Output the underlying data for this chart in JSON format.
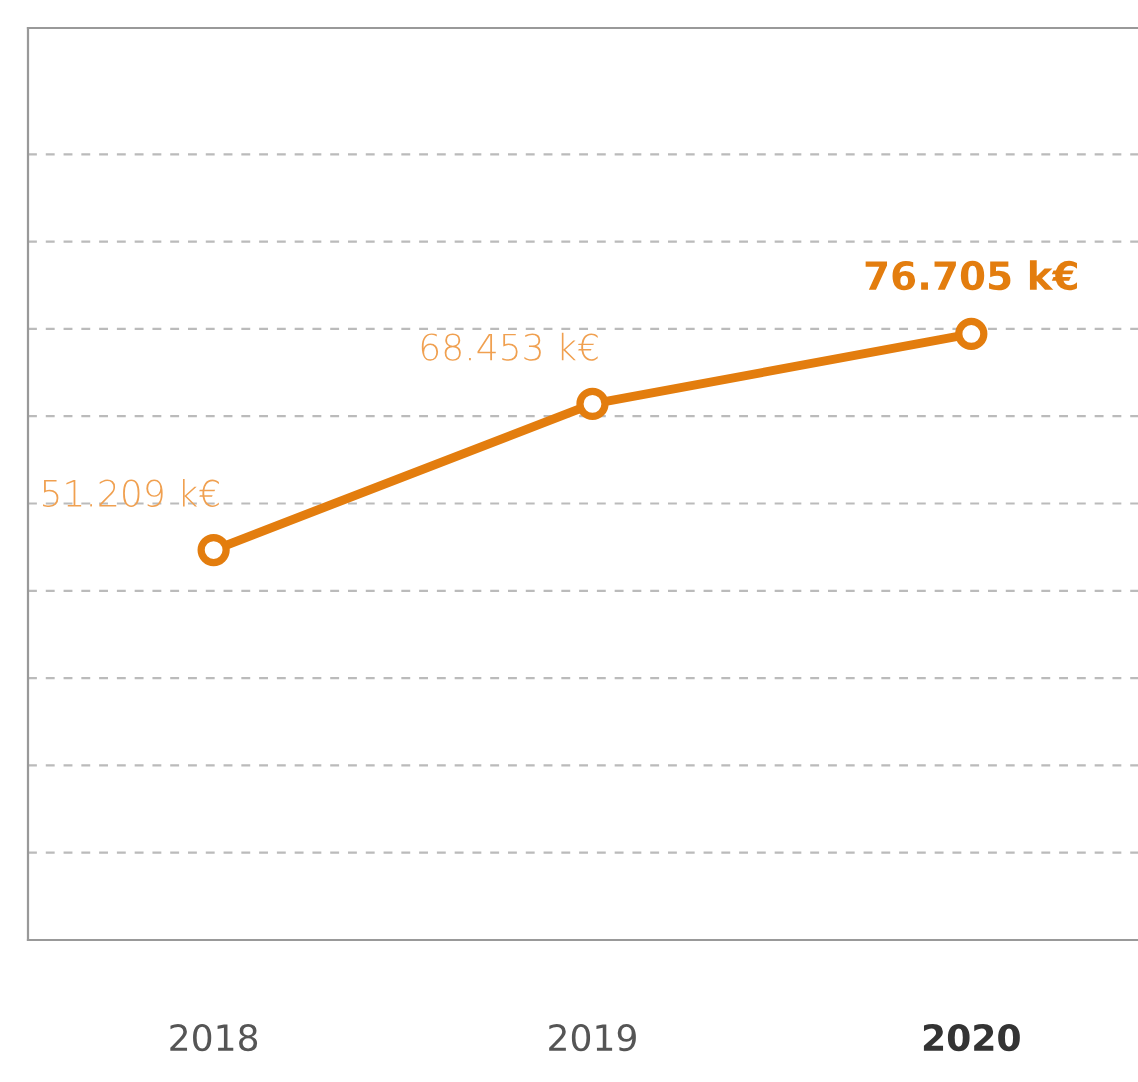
{
  "chart_data": {
    "type": "line",
    "categories": [
      "2018",
      "2019",
      "2020"
    ],
    "series": [
      {
        "color": "#e37d0e",
        "values": [
          51209,
          68453,
          76705
        ],
        "value_labels": [
          "51.209 k€",
          "68.453 k€",
          "76.705 k€"
        ]
      }
    ],
    "ylim": [
      5200,
      112800
    ],
    "yticks": [
      {
        "value": 15500,
        "label": null
      },
      {
        "value": 25800,
        "label": null
      },
      {
        "value": 36100,
        "label": null
      },
      {
        "value": 46400,
        "label": null
      },
      {
        "value": 56700,
        "label": null
      },
      {
        "value": 67000,
        "label": null
      },
      {
        "value": 77300,
        "label": null
      },
      {
        "value": 87600,
        "label": null
      },
      {
        "value": 97900,
        "label": null
      }
    ],
    "grid": "y",
    "marker": "circle",
    "line_style": "solid",
    "tick_labels": "x",
    "legend": false
  }
}
